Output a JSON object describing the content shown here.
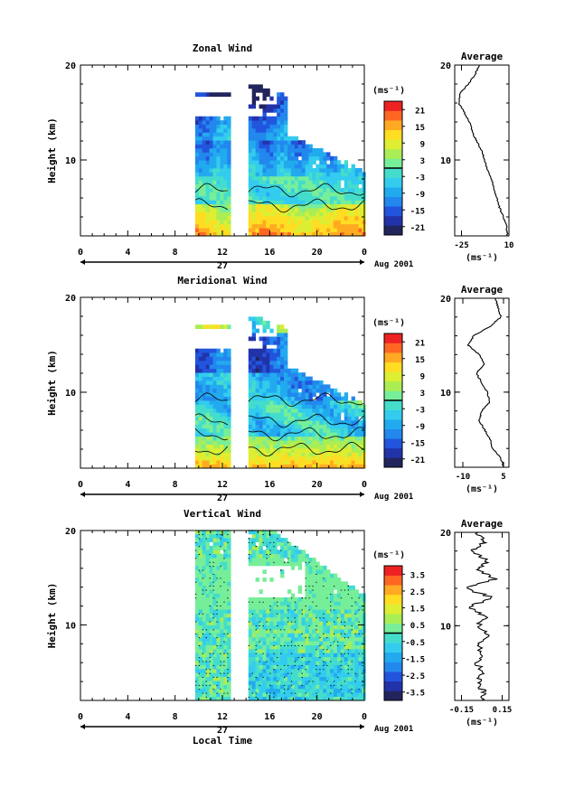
{
  "colors": {
    "cb": [
      "#22245c",
      "#2233aa",
      "#2255dd",
      "#2288ee",
      "#22aaee",
      "#33ccee",
      "#44ddcc",
      "#77ee99",
      "#aaee55",
      "#ddee33",
      "#ffdd22",
      "#ffaa22",
      "#ff6622",
      "#ee2222"
    ]
  },
  "chart_data": [
    {
      "type": "heatmap",
      "title": "Zonal Wind",
      "ylabel": "Height (km)",
      "yticks": [
        "20",
        "10"
      ],
      "ylim": [
        2,
        20
      ],
      "xticks": [
        "0",
        "4",
        "8",
        "12",
        "16",
        "20",
        "0"
      ],
      "xlim": [
        0,
        24
      ],
      "date_day": "27",
      "date_label": "Aug 2001",
      "data_gaps": [
        [
          0,
          9.7
        ],
        [
          12.7,
          14.1
        ]
      ],
      "colorbar": {
        "unit_label": "(ms⁻¹)",
        "ticks": [
          "21",
          "15",
          "9",
          "3",
          "-3",
          "-9",
          "-15",
          "-21"
        ],
        "range": [
          -24,
          24
        ]
      },
      "average": {
        "title": "Average",
        "xlabel": "(ms⁻¹)",
        "xticks": [
          "-25",
          "10"
        ],
        "xlim": [
          -30,
          10
        ],
        "profile_heights_km": [
          20,
          19,
          18,
          17,
          16,
          15,
          14,
          13,
          12,
          11,
          10,
          9,
          8,
          7,
          6,
          5,
          4,
          3,
          2
        ],
        "profile_values": [
          -12,
          -15,
          -20,
          -26,
          -27,
          -23,
          -19,
          -17,
          -14,
          -10,
          -8,
          -6,
          -3,
          -1,
          1,
          3,
          6,
          8,
          9
        ]
      }
    },
    {
      "type": "heatmap",
      "title": "Meridional Wind",
      "ylabel": "Height (km)",
      "yticks": [
        "20",
        "10"
      ],
      "ylim": [
        2,
        20
      ],
      "xticks": [
        "0",
        "4",
        "8",
        "12",
        "16",
        "20",
        "0"
      ],
      "xlim": [
        0,
        24
      ],
      "date_day": "27",
      "date_label": "Aug 2001",
      "data_gaps": [
        [
          0,
          9.7
        ],
        [
          12.7,
          14.1
        ]
      ],
      "colorbar": {
        "unit_label": "(ms⁻¹)",
        "ticks": [
          "21",
          "15",
          "9",
          "3",
          "-3",
          "-9",
          "-15",
          "-21"
        ],
        "range": [
          -24,
          24
        ]
      },
      "average": {
        "title": "Average",
        "xlabel": "(ms⁻¹)",
        "xticks": [
          "-10",
          "5"
        ],
        "xlim": [
          -13,
          7
        ],
        "profile_heights_km": [
          20,
          19,
          18,
          17,
          16,
          15,
          14,
          13,
          12,
          11,
          10,
          9,
          8,
          7,
          6,
          5,
          4,
          3,
          2
        ],
        "profile_values": [
          2,
          3,
          4,
          0,
          -6,
          -8,
          -4,
          -2,
          -5,
          -3,
          -1,
          0,
          -3,
          -4,
          -2,
          0,
          1,
          4,
          5
        ]
      }
    },
    {
      "type": "heatmap",
      "title": "Vertical Wind",
      "ylabel": "Height (km)",
      "xlabel": "Local Time",
      "yticks": [
        "20",
        "10"
      ],
      "ylim": [
        2,
        20
      ],
      "xticks": [
        "0",
        "4",
        "8",
        "12",
        "16",
        "20",
        "0"
      ],
      "xlim": [
        0,
        24
      ],
      "date_day": "27",
      "date_label": "Aug 2001",
      "data_gaps": [
        [
          0,
          9.7
        ],
        [
          12.7,
          14.1
        ]
      ],
      "colorbar": {
        "unit_label": "(ms⁻¹)",
        "ticks": [
          "3.5",
          "2.5",
          "1.5",
          "0.5",
          "-0.5",
          "-1.5",
          "-2.5",
          "-3.5"
        ],
        "range": [
          -4,
          4
        ]
      },
      "average": {
        "title": "Average",
        "xlabel": "(ms⁻¹)",
        "xticks": [
          "-0.15",
          "0.15"
        ],
        "xlim": [
          -0.2,
          0.2
        ],
        "profile_heights_km": [
          20,
          19,
          18,
          17,
          16,
          15,
          14,
          13,
          12,
          11,
          10,
          9,
          8,
          7,
          6,
          5,
          4,
          3,
          2
        ],
        "profile_values": [
          -0.05,
          0.02,
          -0.08,
          0.05,
          -0.02,
          0.1,
          -0.12,
          0.08,
          -0.1,
          0.03,
          -0.03,
          0.04,
          -0.03,
          0.01,
          -0.04,
          0.02,
          -0.03,
          0.01,
          0.0
        ]
      }
    }
  ]
}
